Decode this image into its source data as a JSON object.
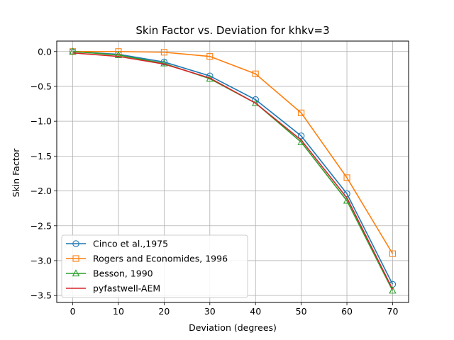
{
  "chart_data": {
    "type": "line",
    "title": "Skin Factor vs. Deviation for khkv=3",
    "xlabel": "Deviation (degrees)",
    "ylabel": "Skin Factor",
    "x": [
      0,
      10,
      20,
      30,
      40,
      50,
      60,
      70
    ],
    "xlim": [
      -3.5,
      73.5
    ],
    "ylim": [
      -3.6,
      0.15
    ],
    "xticks": [
      0,
      10,
      20,
      30,
      40,
      50,
      60,
      70
    ],
    "yticks": [
      0.0,
      -0.5,
      -1.0,
      -1.5,
      -2.0,
      -2.5,
      -3.0,
      -3.5
    ],
    "ytick_labels": [
      "0.0",
      "−0.5",
      "−1.0",
      "−1.5",
      "−2.0",
      "−2.5",
      "−3.0",
      "−3.5"
    ],
    "grid": true,
    "legend_position": "lower-left",
    "series": [
      {
        "name": "Cinco et al.,1975",
        "marker": "circle",
        "color": "#1f77b4",
        "values": [
          0.0,
          -0.04,
          -0.15,
          -0.35,
          -0.69,
          -1.21,
          -2.04,
          -3.34
        ]
      },
      {
        "name": "Rogers and Economides, 1996",
        "marker": "square",
        "color": "#ff7f0e",
        "values": [
          0.0,
          0.0,
          -0.01,
          -0.07,
          -0.32,
          -0.88,
          -1.81,
          -2.9
        ]
      },
      {
        "name": "Besson, 1990",
        "marker": "triangle",
        "color": "#2ca02c",
        "values": [
          0.0,
          -0.05,
          -0.17,
          -0.39,
          -0.74,
          -1.3,
          -2.14,
          -3.43
        ]
      },
      {
        "name": "pyfastwell-AEM",
        "marker": "none",
        "color": "#d62728",
        "values": [
          -0.02,
          -0.07,
          -0.18,
          -0.38,
          -0.74,
          -1.27,
          -2.1,
          -3.41
        ]
      }
    ]
  }
}
